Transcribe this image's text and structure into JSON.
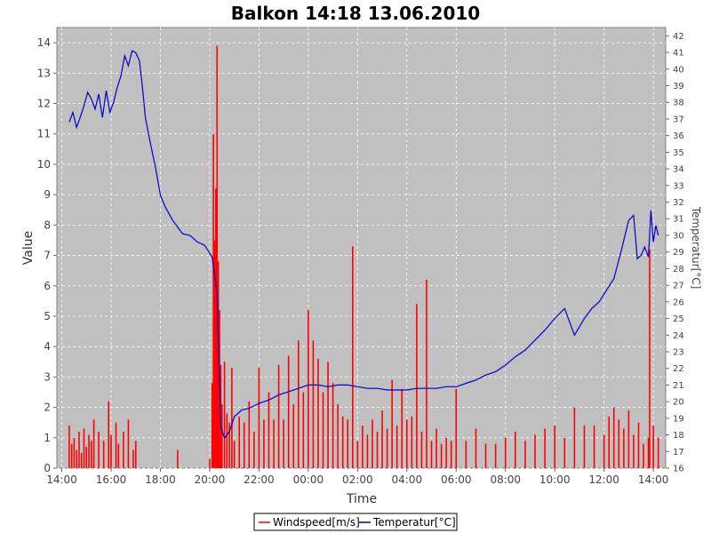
{
  "chart_data": {
    "type": "line",
    "title": "Balkon 14:18 13.06.2010",
    "xlabel": "Time",
    "ylabel": "Value",
    "y2label": "Temperatur[°C]",
    "xticks": [
      "14:00",
      "16:00",
      "18:00",
      "20:00",
      "22:00",
      "00:00",
      "02:00",
      "04:00",
      "06:00",
      "08:00",
      "10:00",
      "12:00",
      "14:00"
    ],
    "xlim_hours": [
      13.8,
      38.5
    ],
    "ylim": [
      0,
      14.5
    ],
    "y2lim": [
      16,
      42.5
    ],
    "grid": true,
    "legend_position": "bottom",
    "colors": {
      "plot_bg": "#c0c0c0",
      "wind": "#ff0000",
      "temp": "#0000cc",
      "grid": "#ffffff"
    },
    "series": [
      {
        "name": "Windspeed[m/s]",
        "axis": "left",
        "color": "#ff0000",
        "style": "bars",
        "x": [
          14.3,
          14.4,
          14.5,
          14.6,
          14.7,
          14.8,
          14.9,
          15.0,
          15.1,
          15.2,
          15.3,
          15.5,
          15.7,
          15.9,
          16.0,
          16.2,
          16.3,
          16.5,
          16.7,
          16.9,
          17.0,
          18.7,
          20.0,
          20.1,
          20.15,
          20.2,
          20.25,
          20.3,
          20.35,
          20.4,
          20.45,
          20.5,
          20.6,
          20.7,
          20.8,
          20.9,
          21.0,
          21.2,
          21.4,
          21.6,
          21.8,
          22.0,
          22.2,
          22.4,
          22.6,
          22.8,
          23.0,
          23.2,
          23.4,
          23.6,
          23.8,
          24.0,
          24.2,
          24.4,
          24.6,
          24.8,
          25.0,
          25.2,
          25.4,
          25.6,
          25.8,
          26.0,
          26.2,
          26.4,
          26.6,
          26.8,
          27.0,
          27.2,
          27.4,
          27.6,
          27.8,
          28.0,
          28.2,
          28.4,
          28.6,
          28.8,
          29.0,
          29.2,
          29.4,
          29.6,
          29.8,
          30.0,
          30.4,
          30.8,
          31.2,
          31.6,
          32.0,
          32.4,
          32.8,
          33.2,
          33.6,
          34.0,
          34.4,
          34.8,
          35.2,
          35.6,
          36.0,
          36.2,
          36.4,
          36.6,
          36.8,
          37.0,
          37.2,
          37.4,
          37.6,
          37.8,
          37.85,
          38.0,
          38.2
        ],
        "values": [
          1.4,
          0.8,
          1.0,
          0.6,
          1.2,
          0.5,
          1.3,
          0.7,
          1.1,
          0.9,
          1.6,
          1.2,
          0.9,
          2.2,
          1.1,
          1.5,
          0.8,
          1.2,
          1.6,
          0.6,
          0.9,
          0.6,
          0.3,
          2.8,
          11.0,
          7.5,
          9.2,
          13.9,
          6.8,
          5.2,
          3.4,
          2.1,
          3.5,
          1.8,
          1.5,
          3.3,
          0.9,
          1.7,
          1.5,
          2.2,
          1.2,
          3.3,
          1.6,
          2.5,
          1.6,
          3.4,
          1.6,
          3.7,
          2.1,
          4.2,
          2.5,
          5.2,
          4.2,
          3.6,
          2.5,
          3.5,
          2.8,
          2.1,
          1.7,
          1.6,
          7.3,
          0.9,
          1.4,
          1.1,
          1.6,
          1.2,
          1.9,
          1.3,
          2.9,
          1.4,
          2.6,
          1.6,
          1.7,
          5.4,
          1.2,
          6.2,
          0.9,
          1.3,
          0.8,
          1.0,
          0.9,
          2.6,
          0.9,
          1.3,
          0.8,
          0.8,
          1.0,
          1.2,
          0.9,
          1.1,
          1.3,
          1.4,
          1.0,
          2.0,
          1.4,
          1.4,
          1.1,
          1.7,
          2.0,
          1.6,
          1.3,
          1.9,
          1.1,
          1.5,
          0.8,
          1.0,
          7.2,
          1.4,
          1.0
        ]
      },
      {
        "name": "Temperatur[°C]",
        "axis": "right",
        "color": "#0000cc",
        "style": "line",
        "x": [
          14.3,
          14.45,
          14.6,
          14.75,
          14.9,
          15.05,
          15.2,
          15.35,
          15.5,
          15.65,
          15.8,
          15.95,
          16.1,
          16.25,
          16.4,
          16.55,
          16.7,
          16.85,
          17.0,
          17.15,
          17.25,
          17.4,
          17.6,
          17.8,
          18.0,
          18.2,
          18.5,
          18.9,
          19.2,
          19.5,
          19.8,
          20.1,
          20.3,
          20.45,
          20.6,
          20.8,
          21.0,
          21.3,
          21.6,
          22.0,
          22.4,
          22.8,
          23.2,
          23.6,
          24.0,
          24.4,
          24.8,
          25.2,
          25.6,
          26.0,
          26.4,
          26.8,
          27.2,
          27.6,
          28.0,
          28.4,
          28.8,
          29.2,
          29.6,
          30.0,
          30.4,
          30.8,
          31.2,
          31.6,
          32.0,
          32.4,
          32.8,
          33.2,
          33.6,
          34.0,
          34.4,
          34.8,
          35.2,
          35.5,
          35.8,
          36.1,
          36.4,
          36.7,
          37.0,
          37.2,
          37.35,
          37.5,
          37.65,
          37.8,
          37.9,
          38.0,
          38.1,
          38.2
        ],
        "values": [
          36.8,
          37.4,
          36.5,
          37.1,
          37.8,
          38.6,
          38.2,
          37.6,
          38.5,
          37.1,
          38.7,
          37.4,
          38.0,
          38.9,
          39.6,
          40.8,
          40.2,
          41.1,
          41.0,
          40.5,
          39.2,
          37.0,
          35.5,
          34.1,
          32.4,
          31.7,
          30.9,
          30.1,
          30.0,
          29.6,
          29.4,
          28.7,
          26.5,
          18.5,
          17.8,
          18.2,
          19.1,
          19.5,
          19.6,
          19.9,
          20.1,
          20.4,
          20.6,
          20.8,
          21.0,
          21.0,
          20.9,
          21.0,
          21.0,
          20.9,
          20.8,
          20.8,
          20.7,
          20.7,
          20.7,
          20.8,
          20.8,
          20.8,
          20.9,
          20.9,
          21.1,
          21.3,
          21.6,
          21.8,
          22.2,
          22.7,
          23.1,
          23.7,
          24.3,
          25.0,
          25.6,
          24.0,
          25.0,
          25.6,
          26.0,
          26.7,
          27.4,
          29.1,
          30.9,
          31.2,
          28.6,
          28.8,
          29.3,
          28.7,
          31.5,
          29.6,
          30.6,
          30.0
        ]
      }
    ]
  }
}
